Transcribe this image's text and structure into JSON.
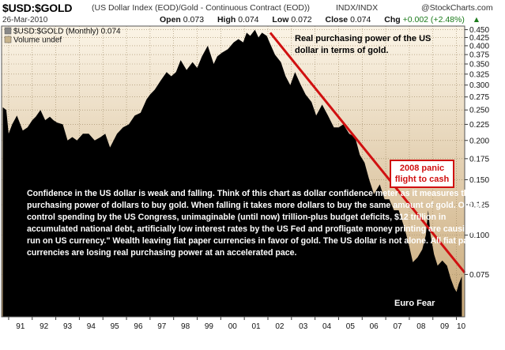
{
  "header": {
    "symbol": "$USD:$GOLD",
    "description": "(US Dollar Index (EOD)/Gold - Continuous Contract (EOD))",
    "exchange": "INDX/INDX",
    "brand": "@StockCharts.com",
    "date": "26-Mar-2010",
    "open_label": "Open",
    "open_value": "0.073",
    "high_label": "High",
    "high_value": "0.074",
    "low_label": "Low",
    "low_value": "0.072",
    "close_label": "Close",
    "close_value": "0.074",
    "chg_label": "Chg",
    "chg_value": "+0.002 (+2.48%)",
    "chg_arrow": "▲"
  },
  "legend": {
    "series_label": "$USD:$GOLD (Monthly) 0.074",
    "volume_label": "Volume undef"
  },
  "annotations": {
    "title": "Real purchasing power of the US dollar in terms of gold.",
    "panic": "2008 panic flight to cash",
    "body": "Confidence in the US dollar is weak and falling. Think of this chart as dollar confidence meter as it measures the purchasing power of dollars to buy gold. When falling it takes more dollars to buy the same amount of gold. Out of control spending by the US Congress, unimaginable (until now) trillion-plus budget deficits, $12 trillion in accumulated national debt, artificially low interest rates by the US Fed and profligate money printing are causing \"a run on US currency.\" Wealth leaving fiat paper currencies in favor of gold. The US dollar is not alone. All fiat paper currencies are losing real purchasing power at an accelerated pace.",
    "euro": "Euro Fear"
  },
  "colors": {
    "background_top": "#fbf4e6",
    "background_bottom": "#c9a979",
    "fill": "#000000",
    "trendline": "#d01010",
    "grid": "#9a8560"
  },
  "chart_data": {
    "type": "area",
    "scale": "log",
    "xlabel": "",
    "ylabel": "",
    "x_tick_labels": [
      "91",
      "92",
      "93",
      "94",
      "95",
      "96",
      "97",
      "98",
      "99",
      "00",
      "01",
      "02",
      "03",
      "04",
      "05",
      "06",
      "07",
      "08",
      "09",
      "10"
    ],
    "y_tick_labels": [
      "0.450",
      "0.425",
      "0.400",
      "0.375",
      "0.350",
      "0.325",
      "0.300",
      "0.275",
      "0.250",
      "0.225",
      "0.200",
      "0.175",
      "0.150",
      "0.125",
      "0.100",
      "0.075"
    ],
    "y_ticks": [
      0.45,
      0.425,
      0.4,
      0.375,
      0.35,
      0.325,
      0.3,
      0.275,
      0.25,
      0.225,
      0.2,
      0.175,
      0.15,
      0.125,
      0.1,
      0.075
    ],
    "xlim": [
      1990.7,
      2010.35
    ],
    "ylim": [
      0.055,
      0.462
    ],
    "series": [
      {
        "values": [
          [
            1990.75,
            0.255
          ],
          [
            1990.9,
            0.25
          ],
          [
            1991.0,
            0.21
          ],
          [
            1991.15,
            0.225
          ],
          [
            1991.35,
            0.24
          ],
          [
            1991.6,
            0.215
          ],
          [
            1991.8,
            0.22
          ],
          [
            1992.0,
            0.232
          ],
          [
            1992.15,
            0.238
          ],
          [
            1992.35,
            0.25
          ],
          [
            1992.55,
            0.232
          ],
          [
            1992.75,
            0.238
          ],
          [
            1992.9,
            0.232
          ],
          [
            1993.05,
            0.228
          ],
          [
            1993.3,
            0.225
          ],
          [
            1993.5,
            0.2
          ],
          [
            1993.7,
            0.205
          ],
          [
            1993.9,
            0.2
          ],
          [
            1994.15,
            0.21
          ],
          [
            1994.4,
            0.21
          ],
          [
            1994.65,
            0.2
          ],
          [
            1994.9,
            0.205
          ],
          [
            1995.1,
            0.21
          ],
          [
            1995.3,
            0.19
          ],
          [
            1995.6,
            0.21
          ],
          [
            1995.85,
            0.22
          ],
          [
            1996.1,
            0.225
          ],
          [
            1996.35,
            0.24
          ],
          [
            1996.6,
            0.245
          ],
          [
            1996.85,
            0.27
          ],
          [
            1997.0,
            0.28
          ],
          [
            1997.2,
            0.29
          ],
          [
            1997.45,
            0.31
          ],
          [
            1997.7,
            0.33
          ],
          [
            1997.9,
            0.32
          ],
          [
            1998.1,
            0.33
          ],
          [
            1998.3,
            0.36
          ],
          [
            1998.55,
            0.335
          ],
          [
            1998.8,
            0.355
          ],
          [
            1999.0,
            0.34
          ],
          [
            1999.2,
            0.37
          ],
          [
            1999.45,
            0.4
          ],
          [
            1999.7,
            0.35
          ],
          [
            1999.85,
            0.37
          ],
          [
            2000.05,
            0.38
          ],
          [
            2000.3,
            0.39
          ],
          [
            2000.55,
            0.41
          ],
          [
            2000.75,
            0.42
          ],
          [
            2000.95,
            0.41
          ],
          [
            2001.1,
            0.44
          ],
          [
            2001.25,
            0.43
          ],
          [
            2001.45,
            0.45
          ],
          [
            2001.6,
            0.425
          ],
          [
            2001.75,
            0.44
          ],
          [
            2001.95,
            0.43
          ],
          [
            2002.1,
            0.405
          ],
          [
            2002.3,
            0.375
          ],
          [
            2002.55,
            0.355
          ],
          [
            2002.75,
            0.32
          ],
          [
            2002.95,
            0.3
          ],
          [
            2003.15,
            0.33
          ],
          [
            2003.4,
            0.3
          ],
          [
            2003.6,
            0.28
          ],
          [
            2003.85,
            0.265
          ],
          [
            2004.05,
            0.24
          ],
          [
            2004.3,
            0.26
          ],
          [
            2004.55,
            0.24
          ],
          [
            2004.8,
            0.22
          ],
          [
            2005.0,
            0.22
          ],
          [
            2005.2,
            0.225
          ],
          [
            2005.45,
            0.21
          ],
          [
            2005.7,
            0.205
          ],
          [
            2005.9,
            0.18
          ],
          [
            2006.1,
            0.17
          ],
          [
            2006.3,
            0.15
          ],
          [
            2006.5,
            0.135
          ],
          [
            2006.75,
            0.145
          ],
          [
            2006.95,
            0.13
          ],
          [
            2007.15,
            0.13
          ],
          [
            2007.35,
            0.12
          ],
          [
            2007.55,
            0.12
          ],
          [
            2007.8,
            0.105
          ],
          [
            2008.0,
            0.092
          ],
          [
            2008.15,
            0.082
          ],
          [
            2008.35,
            0.085
          ],
          [
            2008.55,
            0.09
          ],
          [
            2008.7,
            0.1
          ],
          [
            2008.8,
            0.12
          ],
          [
            2008.9,
            0.1
          ],
          [
            2009.05,
            0.087
          ],
          [
            2009.2,
            0.08
          ],
          [
            2009.4,
            0.083
          ],
          [
            2009.6,
            0.08
          ],
          [
            2009.75,
            0.073
          ],
          [
            2009.9,
            0.068
          ],
          [
            2010.0,
            0.066
          ],
          [
            2010.1,
            0.07
          ],
          [
            2010.23,
            0.074
          ]
        ]
      }
    ],
    "trendline": {
      "start": [
        2002.1,
        0.44
      ],
      "end": [
        2010.35,
        0.076
      ]
    },
    "last_value": 0.074
  }
}
